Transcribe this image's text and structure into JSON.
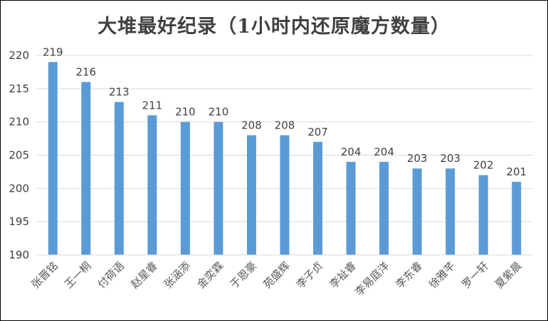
{
  "chart_data": {
    "type": "bar",
    "title": "大堆最好纪录（1小时内还原魔方数量）",
    "xlabel": "",
    "ylabel": "",
    "ylim": [
      190,
      220
    ],
    "yticks": [
      190,
      195,
      200,
      205,
      210,
      215,
      220
    ],
    "grid": true,
    "legend": "none",
    "bar_color": "#5B9BD5",
    "categories": [
      "张晋铭",
      "王一桐",
      "付荷语",
      "赵星睿",
      "张涵添",
      "金奕霖",
      "于恩豪",
      "苑盛辉",
      "李子贞",
      "李祉睿",
      "李易庭洋",
      "李东睿",
      "徐雅芊",
      "罗一轩",
      "夏紫晨"
    ],
    "values": [
      219,
      216,
      213,
      211,
      210,
      210,
      208,
      208,
      207,
      204,
      204,
      203,
      203,
      202,
      201
    ]
  }
}
